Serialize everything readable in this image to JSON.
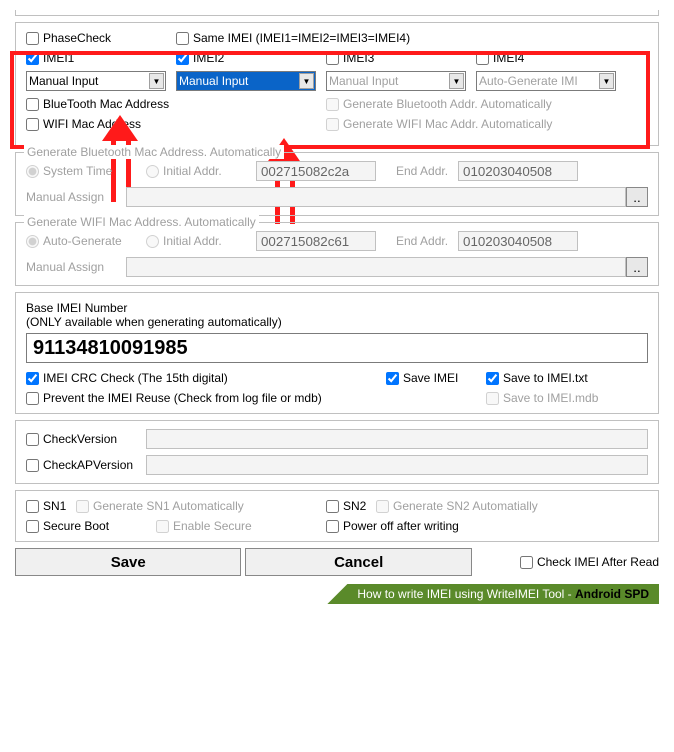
{
  "topbox_border_visible": true,
  "phasecheck": {
    "label": "PhaseCheck",
    "checked": false
  },
  "sameimei": {
    "label": "Same IMEI (IMEI1=IMEI2=IMEI3=IMEI4)",
    "checked": false
  },
  "imei_cols": [
    {
      "label": "IMEI1",
      "checked": true,
      "select_value": "Manual Input",
      "highlight": false,
      "disabled": false
    },
    {
      "label": "IMEI2",
      "checked": true,
      "select_value": "Manual Input",
      "highlight": true,
      "disabled": false
    },
    {
      "label": "IMEI3",
      "checked": false,
      "select_value": "Manual Input",
      "highlight": false,
      "disabled": true
    },
    {
      "label": "IMEI4",
      "checked": false,
      "select_value": "Auto-Generate IMI",
      "highlight": false,
      "disabled": true
    }
  ],
  "bluetooth_mac": {
    "label": "BlueTooth Mac Address",
    "checked": false
  },
  "gen_bt_auto": {
    "label": "Generate Bluetooth Addr. Automatically",
    "checked": false,
    "disabled": true
  },
  "wifi_mac": {
    "label": "WIFI Mac Address",
    "checked": false
  },
  "gen_wifi_auto": {
    "label": "Generate WIFI Mac Addr. Automatically",
    "checked": false,
    "disabled": true
  },
  "group_bt": {
    "title": "Generate Bluetooth Mac Address. Automatically",
    "opt1": "System Time",
    "opt2": "Initial Addr.",
    "initial": "002715082c2a",
    "end_label": "End Addr.",
    "end": "010203040508",
    "manual_label": "Manual Assign"
  },
  "group_wifi": {
    "title": "Generate WIFI Mac Address. Automatically",
    "opt1": "Auto-Generate",
    "opt2": "Initial Addr.",
    "initial": "002715082c61",
    "end_label": "End Addr.",
    "end": "010203040508",
    "manual_label": "Manual Assign"
  },
  "base_imei_label": "Base IMEI Number",
  "base_imei_note": "(ONLY available when generating automatically)",
  "base_imei_value": "91134810091985",
  "crc_check": {
    "label": "IMEI CRC Check (The 15th digital)",
    "checked": true
  },
  "save_imei": {
    "label": "Save IMEI",
    "checked": true
  },
  "save_txt": {
    "label": "Save to IMEI.txt",
    "checked": true
  },
  "prevent_reuse": {
    "label": "Prevent the IMEI Reuse (Check from log file or mdb)",
    "checked": false
  },
  "save_mdb": {
    "label": "Save to IMEI.mdb",
    "checked": false,
    "disabled": true
  },
  "check_version": {
    "label": "CheckVersion",
    "checked": false
  },
  "check_ap_version": {
    "label": "CheckAPVersion",
    "checked": false
  },
  "sn1": {
    "label": "SN1",
    "checked": false
  },
  "gen_sn1": {
    "label": "Generate SN1 Automatically",
    "checked": false,
    "disabled": true
  },
  "sn2": {
    "label": "SN2",
    "checked": false
  },
  "gen_sn2": {
    "label": "Generate SN2 Automatially",
    "checked": false,
    "disabled": true
  },
  "secure_boot": {
    "label": "Secure Boot",
    "checked": false
  },
  "enable_secure": {
    "label": "Enable Secure",
    "checked": false,
    "disabled": true
  },
  "power_off": {
    "label": "Power off after writing",
    "checked": false
  },
  "save_btn": "Save",
  "cancel_btn": "Cancel",
  "check_after": {
    "label": "Check IMEI After Read",
    "checked": false
  },
  "footer_text": "How to write IMEI using WriteIMEI Tool - ",
  "footer_bold": "Android SPD",
  "colors": {
    "red": "#ff1a1a",
    "highlight_bg": "#0a64c8",
    "banner": "#5a8a2a"
  }
}
